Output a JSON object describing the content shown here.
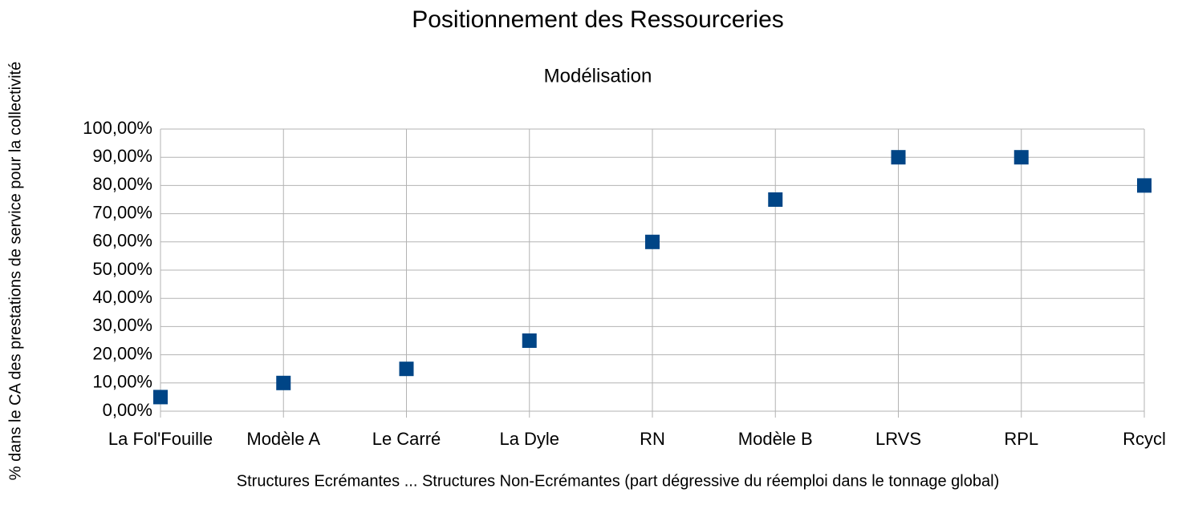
{
  "chart_data": {
    "type": "scatter",
    "title": "Positionnement des Ressourceries",
    "subtitle": "Modélisation",
    "x_label": "Structures Ecrémantes ... Structures Non-Ecrémantes (part dégressive du réemploi dans le tonnage global)",
    "y_label": "% dans le CA des prestations de service pour la collectivité",
    "categories": [
      "La Fol'Fouille",
      "Modèle A",
      "Le Carré",
      "La Dyle",
      "RN",
      "Modèle B",
      "LRVS",
      "RPL",
      "Rcycl"
    ],
    "values": [
      5,
      10,
      15,
      25,
      60,
      75,
      90,
      90,
      80
    ],
    "color": "#004586",
    "ylim": [
      0,
      100
    ],
    "yticks": [
      {
        "value": 0,
        "label": "0,00%"
      },
      {
        "value": 10,
        "label": "10,00%"
      },
      {
        "value": 20,
        "label": "20,00%"
      },
      {
        "value": 30,
        "label": "30,00%"
      },
      {
        "value": 40,
        "label": "40,00%"
      },
      {
        "value": 50,
        "label": "50,00%"
      },
      {
        "value": 60,
        "label": "60,00%"
      },
      {
        "value": 70,
        "label": "70,00%"
      },
      {
        "value": 80,
        "label": "80,00%"
      },
      {
        "value": 90,
        "label": "90,00%"
      },
      {
        "value": 100,
        "label": "100,00%"
      }
    ],
    "grid": true
  }
}
